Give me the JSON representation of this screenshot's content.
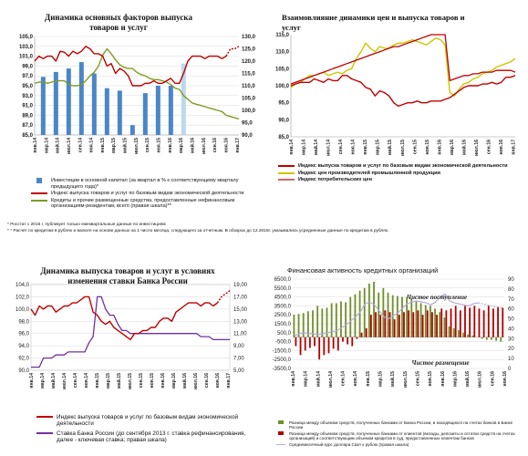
{
  "colors": {
    "red": "#c00000",
    "blue": "#4a86c8",
    "olive": "#7f9c22",
    "yellow": "#c8c800",
    "purple": "#7030a0",
    "dred": "#b00000",
    "green": "#6f8f2a",
    "lilac": "#b9a9d9"
  },
  "months_a": [
    "янв.14",
    "мар.14",
    "май.14",
    "июл.14",
    "сен.14",
    "ноя.14",
    "янв.15",
    "мар.15",
    "май.15",
    "июл.15",
    "сен.15",
    "ноя.15",
    "янв.16",
    "мар.16",
    "май.16",
    "июл.16",
    "сен.16",
    "ноя.16",
    "янв.17"
  ],
  "months_d": [
    "янв.14",
    "мар.14",
    "май.14",
    "июл.14",
    "сен.14",
    "ноя.14",
    "янв.15",
    "мар.15",
    "май.15",
    "июл.15",
    "сен.15",
    "ноя.15",
    "янв.16",
    "мар.16",
    "май.16",
    "июл.16",
    "сен.16",
    "ноя.16"
  ],
  "p1": {
    "title": [
      "Динамика основных факторов выпуска",
      "товаров и услуг"
    ],
    "yleft": [
      "105,0",
      "103,0",
      "101,0",
      "99,0",
      "97,0",
      "95,0",
      "93,0",
      "91,0",
      "89,0",
      "87,0",
      "85,0"
    ],
    "yright": [
      "130,0",
      "125,0",
      "120,0",
      "115,0",
      "110,0",
      "105,0",
      "100,0",
      "95,0",
      "90,0"
    ],
    "legend": [
      "Инвестиции в основной капитал (за квартал в % к соответствующему кварталу предыдущего года)*",
      "Индекс выпуска товаров и услуг по базовым видам экономической деятельности",
      "Кредиты и прочие размещенные средства, предоставленные нефинансовым организациям-резидентам, всего (правая шкала)**"
    ]
  },
  "p2": {
    "title": [
      "Взаимовлияние динамики цен и выпуска товаров и",
      "услуг"
    ],
    "yticks": [
      "115,0",
      "110,0",
      "105,0",
      "100,0",
      "95,0",
      "90,0",
      "85,0"
    ],
    "legend": [
      "Индекс выпуска товаров и услуг по базовым видам экономической деятельности",
      "Индекс цен производителей промышленной продукции",
      "Индекс потребительских цен"
    ]
  },
  "footnotes": [
    "* Росстат с 2016 г. публикует только ежеквартальные данные по инвестициям",
    "* * Расчет по кредитам в рублях и валюте на основе данных на 1 число месяца, следующего за отчетным. В обзорах до 12.2015г. указывались усредненные данные по кредитам в рублях."
  ],
  "p3": {
    "title": [
      "Динамика выпуска товаров и услуг в условиях",
      "изменения ставки Банка России"
    ],
    "yleft": [
      "104,0",
      "102,0",
      "100,0",
      "98,0",
      "96,0",
      "94,0",
      "92,0",
      "90,0"
    ],
    "yright": [
      "19,00",
      "17,00",
      "15,00",
      "13,00",
      "11,00",
      "9,00",
      "7,00",
      "5,00"
    ],
    "legend": [
      "Индекс выпуска товаров и услуг по базовым видам экономической деятельности",
      "Ставка Банка России (до сентября 2013 г. ставка рефинансирования, далее - ключевая ставка; правая шкала)"
    ]
  },
  "p4": {
    "title": "Финансовая активность кредитных организаций",
    "yleft": [
      "6500,0",
      "5500,0",
      "4500,0",
      "3500,0",
      "2500,0",
      "1500,0",
      "500,0",
      "-500,0",
      "-1500,0",
      "-2500,0",
      "-3500,0"
    ],
    "yright": [
      "90",
      "80",
      "70",
      "60",
      "50",
      "40",
      "30",
      "20",
      "10",
      "0"
    ],
    "ann_top": "Чистое поступление",
    "ann_bottom": "Чистое размещение",
    "legend": [
      "Разница между объемом средств, полученных банками от Банка России, и находящихся на счетах банков в Банке России",
      "Разница между объемом средств, полученных банками от клиентов (вклады, депозиты и остатки средств на счетах организаций) и соответствующим объемом кредитов в суд, предоставленных клиентам банков",
      "Среднемесячный курс доллара США к рублю (правая шкала)"
    ]
  },
  "chart_data": [
    {
      "type": "bar",
      "title": "Динамика основных факторов выпуска товаров и услуг",
      "ylim": [
        85,
        105
      ],
      "y2lim": [
        90,
        130
      ],
      "series": [
        {
          "name": "Инвестиции в основной капитал (за квартал в % к соответствующему кварталу предыдущего года)*",
          "kind": "bar",
          "x": [
            2,
            5,
            8,
            11,
            14,
            17,
            20,
            23,
            26,
            29,
            32,
            35
          ],
          "values": [
            96.8,
            97.8,
            98.5,
            99.8,
            97.5,
            94.5,
            94.0,
            87.0,
            93.5,
            95.0,
            95.0,
            99.5
          ]
        },
        {
          "name": "Индекс выпуска товаров и услуг по базовым видам экономической деятельности",
          "kind": "line",
          "values": [
            100.0,
            101.0,
            100.5,
            101.0,
            101.0,
            100.0,
            102.0,
            101.8,
            101.0,
            102.0,
            101.5,
            102.0,
            103.0,
            102.5,
            101.5,
            101.5,
            101.0,
            99.0,
            99.5,
            97.5,
            98.5,
            98.0,
            97.0,
            95.0,
            95.0,
            95.0,
            95.5,
            95.5,
            96.0,
            95.5,
            95.5,
            96.0,
            96.5,
            95.5,
            95.5,
            97.5,
            100.0,
            101.0,
            101.0,
            101.0,
            100.5,
            101.0,
            101.0,
            101.0,
            100.5,
            101.0,
            102.5,
            102.5,
            103.0
          ]
        },
        {
          "name": "Кредиты и прочие размещенные средства, предоставленные нефинансовым организациям-резидентам, всего (правая шкала)**",
          "kind": "line",
          "axis": "right",
          "values": [
            111.0,
            111.5,
            111.5,
            111.0,
            111.5,
            112.0,
            112.0,
            112.0,
            110.5,
            110.0,
            110.0,
            110.5,
            112.0,
            114.0,
            115.5,
            118.0,
            122.5,
            125.0,
            123.0,
            120.5,
            118.5,
            117.5,
            117.0,
            117.0,
            115.5,
            114.5,
            114.0,
            113.0,
            112.5,
            112.5,
            112.0,
            111.5,
            110.5,
            109.0,
            108.5,
            106.0,
            104.5,
            103.0,
            102.5,
            102.0,
            101.5,
            101.0,
            100.5,
            100.0,
            99.5,
            98.0,
            97.5,
            97.0,
            96.5
          ]
        }
      ]
    },
    {
      "type": "line",
      "title": "Взаимовлияние динамики цен и выпуска товаров и услуг",
      "ylim": [
        85,
        115
      ],
      "series": [
        {
          "name": "Индекс выпуска товаров и услуг по базовым видам экономической деятельности",
          "values": [
            100.0,
            100.5,
            101.0,
            101.0,
            101.0,
            102.0,
            101.5,
            101.0,
            102.0,
            101.5,
            101.5,
            103.0,
            103.0,
            102.0,
            101.5,
            101.0,
            99.5,
            99.0,
            97.0,
            98.5,
            98.0,
            97.0,
            95.0,
            94.0,
            94.5,
            95.0,
            95.0,
            95.5,
            95.0,
            95.0,
            95.5,
            95.5,
            95.5,
            96.0,
            96.5,
            97.5,
            98.5,
            99.5,
            100.0,
            100.0,
            100.0,
            100.5,
            100.5,
            101.0,
            100.5,
            101.0,
            102.5,
            102.5,
            103.0
          ]
        },
        {
          "name": "Индекс цен производителей промышленной продукции",
          "values": [
            99.5,
            100.5,
            101.0,
            102.0,
            103.0,
            103.0,
            103.5,
            104.0,
            103.0,
            103.5,
            104.0,
            103.5,
            104.5,
            105.0,
            108.0,
            110.0,
            112.5,
            111.0,
            110.0,
            111.5,
            111.0,
            111.0,
            112.0,
            112.5,
            112.5,
            113.0,
            113.5,
            113.0,
            112.5,
            112.0,
            113.0,
            114.0,
            113.5,
            112.0,
            98.0,
            97.0,
            99.0,
            100.5,
            101.0,
            102.0,
            102.5,
            103.5,
            104.0,
            104.5,
            105.5,
            106.0,
            106.5,
            107.0,
            108.0
          ]
        },
        {
          "name": "Индекс потребительских цен",
          "values": [
            100.5,
            101.0,
            101.5,
            102.0,
            102.5,
            103.0,
            103.5,
            104.0,
            104.5,
            105.0,
            105.5,
            106.0,
            106.5,
            107.0,
            107.5,
            108.0,
            108.5,
            109.0,
            109.5,
            110.0,
            110.5,
            111.0,
            111.5,
            111.5,
            112.0,
            112.5,
            113.0,
            113.5,
            114.0,
            114.5,
            115.0,
            115.0,
            115.0,
            115.0,
            101.5,
            102.0,
            102.5,
            103.0,
            103.0,
            103.5,
            103.5,
            104.0,
            104.0,
            104.0,
            104.5,
            104.5,
            104.5,
            104.5,
            104.0
          ]
        }
      ]
    },
    {
      "type": "line",
      "title": "Динамика выпуска товаров и услуг в условиях изменения ставки Банка России",
      "ylim": [
        90,
        104
      ],
      "y2lim": [
        5,
        19
      ],
      "series": [
        {
          "name": "Индекс выпуска товаров и услуг по базовым видам экономической деятельности",
          "values": [
            100.0,
            99.0,
            100.5,
            100.0,
            100.5,
            100.5,
            99.5,
            100.0,
            100.5,
            100.5,
            101.0,
            101.0,
            101.5,
            102.0,
            102.0,
            99.5,
            99.0,
            98.0,
            97.5,
            98.0,
            97.0,
            96.5,
            96.0,
            95.5,
            95.0,
            96.0,
            96.0,
            96.5,
            96.5,
            97.0,
            97.0,
            98.0,
            98.5,
            98.5,
            98.0,
            99.5,
            100.0,
            100.5,
            101.0,
            101.0,
            101.0,
            100.5,
            101.0,
            101.0,
            100.5,
            101.0,
            102.0,
            102.5,
            103.0
          ]
        },
        {
          "name": "Ставка Банка России (до сентября 2013 г. ставка рефинансирования, далее - ключевая ставка; правая шкала)",
          "axis": "right",
          "values": [
            5.5,
            5.5,
            5.5,
            7.0,
            7.0,
            7.0,
            7.5,
            7.5,
            7.5,
            8.0,
            8.0,
            8.0,
            8.0,
            8.0,
            9.5,
            10.5,
            17.0,
            17.0,
            15.0,
            14.0,
            14.0,
            12.5,
            11.5,
            11.5,
            11.0,
            11.0,
            11.0,
            11.0,
            11.0,
            11.0,
            11.0,
            11.0,
            11.0,
            11.0,
            11.0,
            11.0,
            11.0,
            11.0,
            11.0,
            11.0,
            11.0,
            10.5,
            10.5,
            10.5,
            10.0,
            10.0,
            10.0,
            10.0,
            10.0
          ]
        }
      ]
    },
    {
      "type": "bar",
      "title": "Финансовая активность кредитных организаций",
      "ylim": [
        -3500,
        6500
      ],
      "y2lim": [
        0,
        90
      ],
      "series": [
        {
          "name": "Разница между объемом средств, полученных банками от Банка России, и находящихся на счетах банков в Банке России",
          "color": "#6f8f2a",
          "values": [
            2500,
            2600,
            2700,
            2900,
            3000,
            3500,
            3200,
            3300,
            3800,
            3800,
            4000,
            3900,
            4500,
            4800,
            5200,
            5500,
            6000,
            6200,
            5000,
            5500,
            5000,
            4700,
            4600,
            4500,
            4500,
            4300,
            4000,
            3800,
            3600,
            3500,
            3200,
            2800,
            2200,
            1200,
            1000,
            800,
            500,
            300,
            200,
            0,
            -200,
            -300,
            -300,
            -400,
            -500
          ]
        },
        {
          "name": "Разница между объемом средств, полученных банками от клиентов (вклады, депозиты и остатки средств на счетах организаций) и соответствующим объемом кредитов в суд, предоставленных клиентам банков",
          "color": "#b00000",
          "values": [
            -1000,
            -2000,
            -1500,
            -1200,
            -1000,
            -2500,
            -2000,
            -1800,
            -1300,
            -1500,
            -500,
            -800,
            -1000,
            -200,
            500,
            1000,
            2500,
            2800,
            2500,
            3000,
            2800,
            2000,
            2500,
            2800,
            3000,
            2800,
            3000,
            2500,
            3000,
            2800,
            2500,
            3200,
            3000,
            3200,
            3500,
            3000,
            3500,
            3300,
            3500,
            3200,
            3000,
            3500,
            3200,
            3400,
            3300
          ]
        },
        {
          "name": "Среднемесячный курс доллара США к рублю (правая шкала)",
          "axis": "right",
          "kind": "line",
          "values": [
            33,
            35,
            36,
            35,
            35,
            34,
            35,
            36,
            37,
            38,
            41,
            44,
            48,
            52,
            57,
            65,
            67,
            64,
            58,
            52,
            50,
            53,
            56,
            61,
            65,
            67,
            68,
            67,
            66,
            64,
            67,
            72,
            75,
            68,
            66,
            65,
            64,
            63,
            65,
            66,
            65,
            64,
            63,
            62,
            61
          ]
        }
      ]
    }
  ]
}
